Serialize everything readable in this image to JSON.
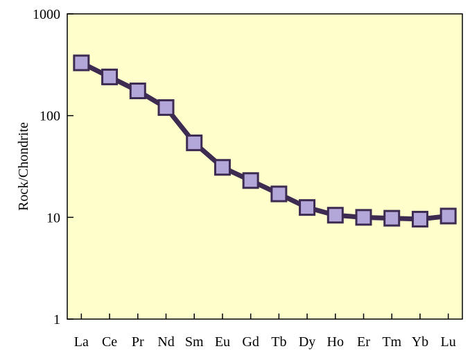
{
  "chart_data": {
    "type": "line",
    "title": "",
    "xlabel": "",
    "ylabel": "Rock/Chondrite",
    "yscale": "log",
    "ylim": [
      1,
      1000
    ],
    "yticks": [
      {
        "value": 1,
        "label": "1"
      },
      {
        "value": 10,
        "label": "10"
      },
      {
        "value": 100,
        "label": "100"
      },
      {
        "value": 1000,
        "label": "1000"
      }
    ],
    "categories": [
      "La",
      "Ce",
      "Pr",
      "Nd",
      "Sm",
      "Eu",
      "Gd",
      "Tb",
      "Dy",
      "Ho",
      "Er",
      "Tm",
      "Yb",
      "Lu"
    ],
    "series": [
      {
        "values": [
          330,
          240,
          175,
          120,
          54,
          31,
          23,
          17,
          12.5,
          10.5,
          10,
          9.8,
          9.6,
          10.3
        ]
      }
    ],
    "grid": false,
    "legend": "none",
    "colors": {
      "plot_background": "#FFFFCC",
      "line": "#3D2B52",
      "marker_fill": "#B3A6D9",
      "marker_edge": "#3D2B52",
      "axis": "#000000"
    }
  }
}
